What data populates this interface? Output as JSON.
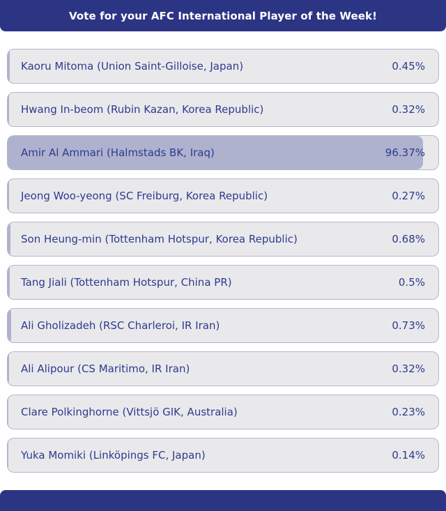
{
  "header": {
    "title": "Vote for your AFC International Player of the Week!"
  },
  "poll": {
    "options": [
      {
        "label": "Kaoru Mitoma (Union Saint-Gilloise, Japan)",
        "pct_label": "0.45%",
        "pct": 0.45,
        "highlighted": false
      },
      {
        "label": "Hwang In-beom (Rubin Kazan, Korea Republic)",
        "pct_label": "0.32%",
        "pct": 0.32,
        "highlighted": false
      },
      {
        "label": "Amir Al Ammari (Halmstads BK, Iraq)",
        "pct_label": "96.37%",
        "pct": 96.37,
        "highlighted": true
      },
      {
        "label": "Jeong Woo-yeong (SC Freiburg, Korea Republic)",
        "pct_label": "0.27%",
        "pct": 0.27,
        "highlighted": false
      },
      {
        "label": "Son Heung-min (Tottenham Hotspur, Korea Republic)",
        "pct_label": "0.68%",
        "pct": 0.68,
        "highlighted": false
      },
      {
        "label": "Tang Jiali (Tottenham Hotspur, China PR)",
        "pct_label": "0.5%",
        "pct": 0.5,
        "highlighted": false
      },
      {
        "label": "Ali Gholizadeh (RSC Charleroi, IR Iran)",
        "pct_label": "0.73%",
        "pct": 0.73,
        "highlighted": false
      },
      {
        "label": "Ali Alipour (CS Maritimo, IR Iran)",
        "pct_label": "0.32%",
        "pct": 0.32,
        "highlighted": false
      },
      {
        "label": "Clare Polkinghorne (Vittsjö GIK, Australia)",
        "pct_label": "0.23%",
        "pct": 0.23,
        "highlighted": false
      },
      {
        "label": "Yuka Momiki (Linköpings FC, Japan)",
        "pct_label": "0.14%",
        "pct": 0.14,
        "highlighted": false
      }
    ]
  },
  "colors": {
    "navy": "#2c3484",
    "row_background": "#e9e9ec",
    "row_border": "#b5b6c7",
    "result_fill": "#aeb2cf",
    "text": "#2e3a8c"
  }
}
